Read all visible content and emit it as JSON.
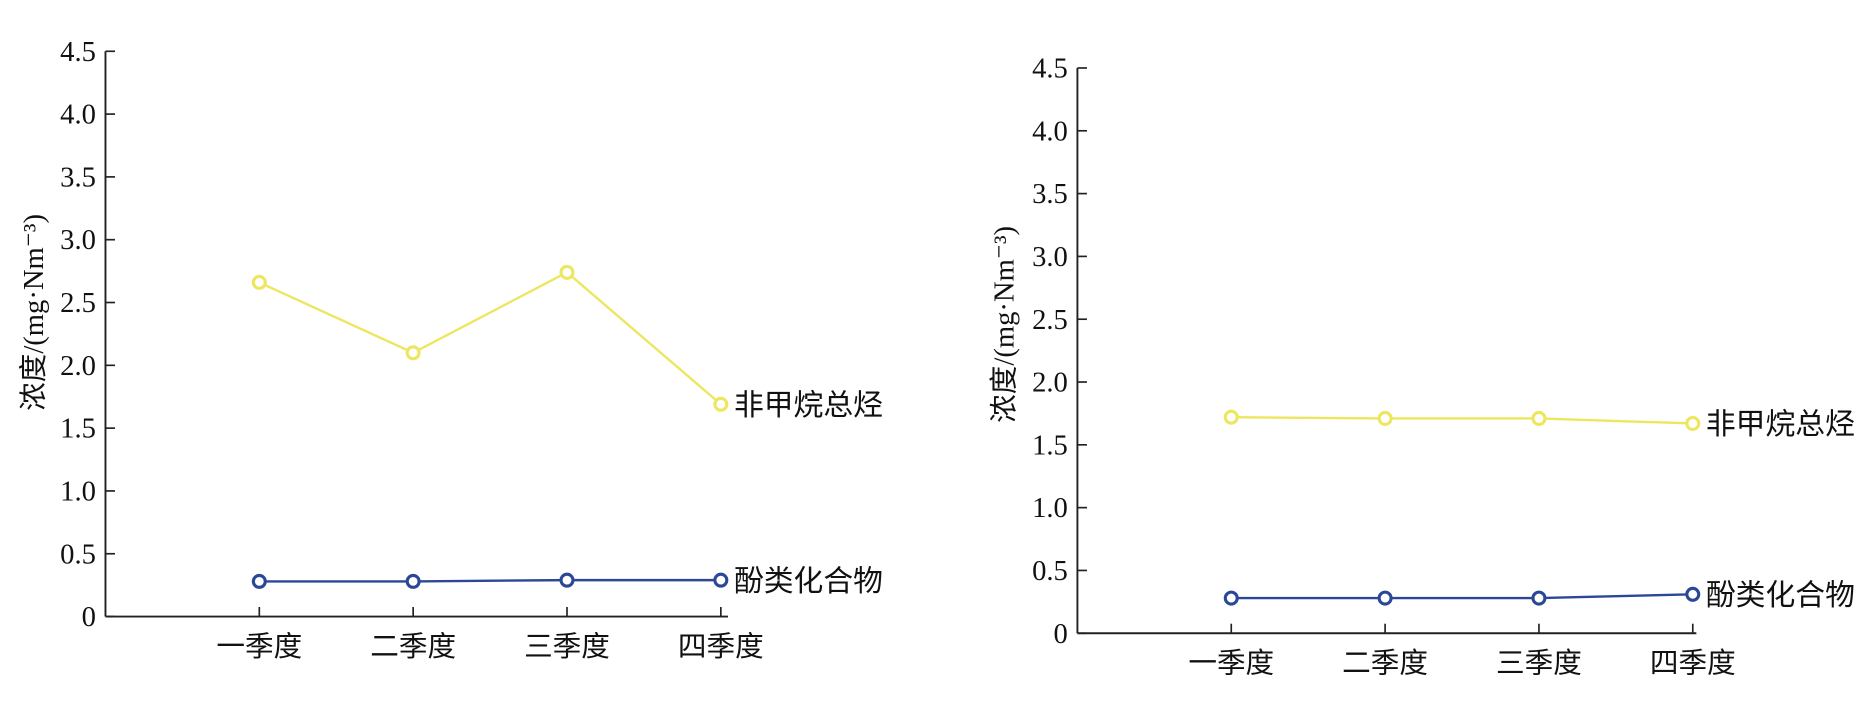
{
  "chart_data": [
    {
      "type": "line",
      "categories": [
        "一季度",
        "二季度",
        "三季度",
        "四季度"
      ],
      "ylabel": "浓度/(mg·Nm⁻³)",
      "ylim": [
        0,
        4.5
      ],
      "yticks": [
        "0",
        "0.5",
        "1.0",
        "1.5",
        "2.0",
        "2.5",
        "3.0",
        "3.5",
        "4.0",
        "4.5"
      ],
      "grid": false,
      "legend": "inline labels at right end of each line",
      "series": [
        {
          "name": "非甲烷总烃",
          "values": [
            2.66,
            2.1,
            2.74,
            1.69
          ],
          "color": "#ede65f"
        },
        {
          "name": "酚类化合物",
          "values": [
            0.28,
            0.28,
            0.29,
            0.29
          ],
          "color": "#2b4896"
        }
      ]
    },
    {
      "type": "line",
      "categories": [
        "一季度",
        "二季度",
        "三季度",
        "四季度"
      ],
      "ylabel": "浓度/(mg·Nm⁻³)",
      "ylim": [
        0,
        4.5
      ],
      "yticks": [
        "0",
        "0.5",
        "1.0",
        "1.5",
        "2.0",
        "2.5",
        "3.0",
        "3.5",
        "4.0",
        "4.5"
      ],
      "grid": false,
      "legend": "inline labels at right end of each line",
      "series": [
        {
          "name": "非甲烷总烃",
          "values": [
            1.72,
            1.71,
            1.71,
            1.67
          ],
          "color": "#ede65f"
        },
        {
          "name": "酚类化合物",
          "values": [
            0.28,
            0.28,
            0.28,
            0.31
          ],
          "color": "#2b4896"
        }
      ]
    }
  ]
}
